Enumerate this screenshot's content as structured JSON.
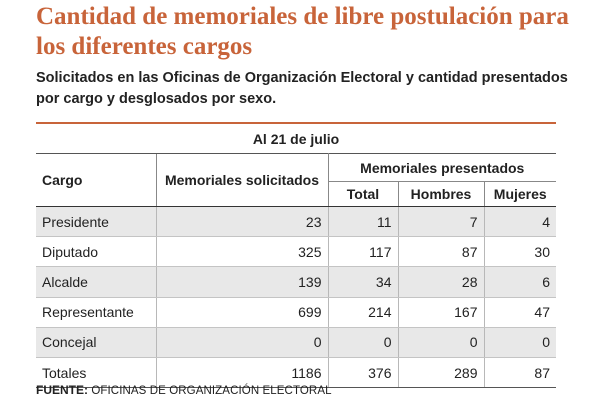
{
  "title": "Cantidad de memoriales de libre postulación para los diferentes cargos",
  "subtitle": "Solicitados en las Oficinas de Organización Electoral y cantidad presentados por cargo y desglosados por sexo.",
  "date_label": "Al 21  de julio",
  "colors": {
    "accent": "#c8643a",
    "row_shade": "#e8e8e8"
  },
  "chart_data": {
    "type": "table",
    "headers": {
      "cargo": "Cargo",
      "solicitados": "Memoriales solicitados",
      "presentados_group": "Memoriales presentados",
      "total": "Total",
      "hombres": "Hombres",
      "mujeres": "Mujeres"
    },
    "rows": [
      {
        "cargo": "Presidente",
        "solicitados": "23",
        "total": "11",
        "hombres": "7",
        "mujeres": "4"
      },
      {
        "cargo": "Diputado",
        "solicitados": "325",
        "total": "117",
        "hombres": "87",
        "mujeres": "30"
      },
      {
        "cargo": "Alcalde",
        "solicitados": "139",
        "total": "34",
        "hombres": "28",
        "mujeres": "6"
      },
      {
        "cargo": "Representante",
        "solicitados": "699",
        "total": "214",
        "hombres": "167",
        "mujeres": "47"
      },
      {
        "cargo": "Concejal",
        "solicitados": "0",
        "total": "0",
        "hombres": "0",
        "mujeres": "0"
      },
      {
        "cargo": "Totales",
        "solicitados": "1186",
        "total": "376",
        "hombres": "289",
        "mujeres": "87"
      }
    ]
  },
  "source": {
    "label": "FUENTE:",
    "text": "OFICINAS DE ORGANIZACIÓN ELECTORAL"
  }
}
